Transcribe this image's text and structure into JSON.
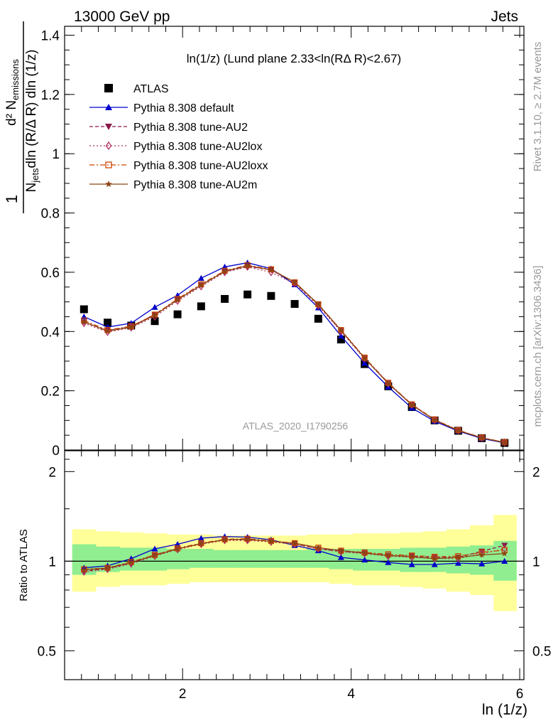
{
  "header": {
    "left": "13000 GeV pp",
    "right": "Jets"
  },
  "side": {
    "rivet": "Rivet 3.1.10, ≥ 2.7M events",
    "mcplots": "mcplots.cern.ch [arXiv:1306.3436]"
  },
  "chart_data": [
    {
      "type": "scatter",
      "title": "ln(1/z) (Lund plane 2.33<ln(RΔ R)<2.67)",
      "watermark": "ATLAS_2020_I1790256",
      "ylabel": "1/N_jets d²N_emissions / dln(R/ΔR) dln(1/z)",
      "xlabel": "ln (1/z)",
      "xlim": [
        0.6,
        6.05
      ],
      "ylim": [
        0,
        1.43
      ],
      "yticks": [
        0,
        0.2,
        0.4,
        0.6,
        0.8,
        1,
        1.2,
        1.4
      ],
      "ytick_labels": [
        "0",
        "0.2",
        "0.4",
        "0.6",
        "0.8",
        "1",
        "1.2",
        "1.4"
      ],
      "xticks": [
        2,
        4,
        6
      ],
      "xtick_labels": [
        "2",
        "4",
        "6"
      ],
      "legend_position": "top-left",
      "x": [
        0.83,
        1.11,
        1.39,
        1.67,
        1.94,
        2.22,
        2.5,
        2.77,
        3.05,
        3.33,
        3.61,
        3.88,
        4.16,
        4.44,
        4.72,
        4.99,
        5.27,
        5.55,
        5.82
      ],
      "series": [
        {
          "name": "ATLAS",
          "color": "#000000",
          "marker": "square",
          "line": "none",
          "values": [
            0.475,
            0.43,
            0.42,
            0.435,
            0.458,
            0.485,
            0.51,
            0.525,
            0.52,
            0.493,
            0.443,
            0.373,
            0.29,
            0.215,
            0.145,
            0.1,
            0.065,
            0.04,
            0.024
          ]
        },
        {
          "name": "Pythia 8.308 default",
          "color": "#0000cc",
          "marker": "triangle-up",
          "line": "solid",
          "values": [
            0.45,
            0.415,
            0.428,
            0.482,
            0.522,
            0.58,
            0.618,
            0.632,
            0.612,
            0.558,
            0.48,
            0.385,
            0.293,
            0.213,
            0.142,
            0.097,
            0.064,
            0.039,
            0.024
          ]
        },
        {
          "name": "Pythia 8.308 tune-AU2",
          "color": "#8b1a4a",
          "marker": "triangle-down",
          "line": "dashed",
          "values": [
            0.432,
            0.403,
            0.416,
            0.458,
            0.508,
            0.557,
            0.602,
            0.62,
            0.608,
            0.565,
            0.49,
            0.403,
            0.31,
            0.225,
            0.153,
            0.102,
            0.066,
            0.041,
            0.026
          ]
        },
        {
          "name": "Pythia 8.308 tune-AU2lox",
          "color": "#b03060",
          "marker": "diamond-open",
          "line": "dotted",
          "values": [
            0.428,
            0.398,
            0.413,
            0.45,
            0.503,
            0.552,
            0.6,
            0.618,
            0.6,
            0.562,
            0.487,
            0.4,
            0.308,
            0.224,
            0.152,
            0.101,
            0.066,
            0.041,
            0.026
          ]
        },
        {
          "name": "Pythia 8.308 tune-AU2loxx",
          "color": "#cc4400",
          "marker": "square-open",
          "line": "dashdot",
          "values": [
            0.437,
            0.405,
            0.418,
            0.457,
            0.51,
            0.56,
            0.605,
            0.624,
            0.61,
            0.566,
            0.492,
            0.405,
            0.312,
            0.227,
            0.154,
            0.103,
            0.067,
            0.042,
            0.026
          ]
        },
        {
          "name": "Pythia 8.308 tune-AU2m",
          "color": "#8b4513",
          "marker": "star",
          "line": "solid",
          "values": [
            0.433,
            0.401,
            0.415,
            0.455,
            0.507,
            0.556,
            0.603,
            0.622,
            0.608,
            0.567,
            0.492,
            0.404,
            0.31,
            0.225,
            0.152,
            0.101,
            0.066,
            0.041,
            0.025
          ]
        }
      ]
    },
    {
      "type": "line",
      "ylabel": "Ratio to ATLAS",
      "xlabel": "ln (1/z)",
      "ylim": [
        0.4,
        2.35
      ],
      "y_scale": "log",
      "yticks": [
        0.5,
        1,
        2
      ],
      "ytick_labels": [
        "0.5",
        "1",
        "2"
      ],
      "reference_line": 1,
      "bin_edges": [
        0.69,
        0.97,
        1.25,
        1.53,
        1.81,
        2.08,
        2.36,
        2.64,
        2.91,
        3.19,
        3.47,
        3.74,
        4.02,
        4.3,
        4.58,
        4.85,
        5.13,
        5.41,
        5.69,
        5.96
      ],
      "band_inner": {
        "color": "#90ee90",
        "lo": [
          0.9,
          0.92,
          0.93,
          0.93,
          0.94,
          0.95,
          0.95,
          0.95,
          0.95,
          0.95,
          0.95,
          0.94,
          0.93,
          0.93,
          0.92,
          0.92,
          0.91,
          0.9,
          0.86
        ],
        "hi": [
          1.14,
          1.12,
          1.11,
          1.11,
          1.1,
          1.1,
          1.09,
          1.09,
          1.09,
          1.09,
          1.1,
          1.1,
          1.1,
          1.1,
          1.11,
          1.11,
          1.12,
          1.13,
          1.17
        ]
      },
      "band_outer": {
        "color": "#ffff99",
        "lo": [
          0.79,
          0.82,
          0.83,
          0.83,
          0.84,
          0.85,
          0.85,
          0.85,
          0.85,
          0.85,
          0.85,
          0.84,
          0.83,
          0.83,
          0.82,
          0.81,
          0.79,
          0.77,
          0.68
        ],
        "hi": [
          1.28,
          1.26,
          1.25,
          1.24,
          1.23,
          1.23,
          1.22,
          1.22,
          1.22,
          1.22,
          1.23,
          1.23,
          1.24,
          1.24,
          1.25,
          1.26,
          1.28,
          1.32,
          1.43
        ]
      },
      "series": [
        {
          "name": "Pythia 8.308 default",
          "values": [
            0.95,
            0.965,
            1.02,
            1.1,
            1.14,
            1.195,
            1.21,
            1.205,
            1.18,
            1.13,
            1.085,
            1.03,
            1.01,
            0.99,
            0.975,
            0.975,
            0.985,
            0.98,
            1.0
          ]
        },
        {
          "name": "Pythia 8.308 tune-AU2",
          "values": [
            0.925,
            0.945,
            0.985,
            1.05,
            1.1,
            1.145,
            1.18,
            1.18,
            1.17,
            1.145,
            1.1,
            1.08,
            1.065,
            1.045,
            1.04,
            1.03,
            1.03,
            1.08,
            1.13
          ]
        },
        {
          "name": "Pythia 8.308 tune-AU2lox",
          "values": [
            0.92,
            0.94,
            0.98,
            1.04,
            1.095,
            1.14,
            1.175,
            1.175,
            1.16,
            1.14,
            1.1,
            1.075,
            1.06,
            1.04,
            1.03,
            1.02,
            1.02,
            1.06,
            1.1
          ]
        },
        {
          "name": "Pythia 8.308 tune-AU2loxx",
          "values": [
            0.94,
            0.95,
            0.995,
            1.05,
            1.105,
            1.15,
            1.185,
            1.19,
            1.17,
            1.15,
            1.11,
            1.085,
            1.07,
            1.055,
            1.045,
            1.035,
            1.04,
            1.07,
            1.09
          ]
        },
        {
          "name": "Pythia 8.308 tune-AU2m",
          "values": [
            0.935,
            0.948,
            0.99,
            1.045,
            1.1,
            1.145,
            1.18,
            1.185,
            1.165,
            1.15,
            1.11,
            1.085,
            1.065,
            1.045,
            1.035,
            1.02,
            1.03,
            1.05,
            1.06
          ]
        }
      ]
    }
  ]
}
